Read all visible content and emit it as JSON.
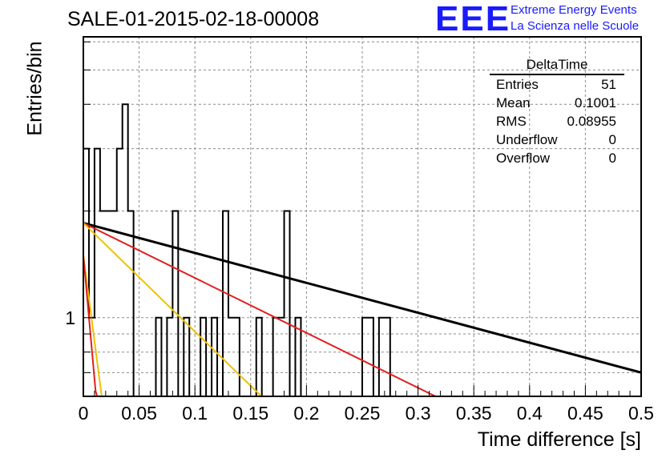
{
  "header": {
    "title": "SALE-01-2015-02-18-00008",
    "logo_text": "EEE",
    "logo_line1": "Extreme Energy Events",
    "logo_line2": "La Scienza nelle Scuole"
  },
  "stats_box": {
    "title": "DeltaTime",
    "rows": [
      {
        "label": "Entries",
        "value": "51"
      },
      {
        "label": "Mean",
        "value": "0.1001"
      },
      {
        "label": "RMS",
        "value": "0.08955"
      },
      {
        "label": "Underflow",
        "value": "0"
      },
      {
        "label": "Overflow",
        "value": "0"
      }
    ]
  },
  "chart_data": {
    "type": "histogram",
    "title": "SALE-01-2015-02-18-00008",
    "xlabel": "Time difference [s]",
    "ylabel": "Entries/bin",
    "xlim": [
      0,
      0.5
    ],
    "ylim": [
      0.6,
      6.2
    ],
    "yscale": "log",
    "grid": true,
    "bin_width": 0.005,
    "x_ticks": [
      "0",
      "0.05",
      "0.1",
      "0.15",
      "0.2",
      "0.25",
      "0.3",
      "0.35",
      "0.4",
      "0.45",
      "0.5"
    ],
    "y_ticks": [
      "1"
    ],
    "bin_counts": [
      3,
      1,
      3,
      2,
      2,
      2,
      3,
      4,
      2,
      0,
      0,
      0,
      0,
      1,
      0,
      1,
      2,
      0,
      1,
      0,
      0,
      1,
      0,
      1,
      0,
      2,
      1,
      1,
      0,
      0,
      0,
      1,
      0,
      0,
      1,
      1,
      2,
      0,
      1,
      0,
      0,
      0,
      0,
      0,
      0,
      0,
      0,
      0,
      0,
      0,
      1,
      1,
      0,
      1,
      1,
      0,
      0,
      0,
      0,
      0,
      0,
      0,
      0,
      0,
      0,
      0,
      0,
      0,
      0,
      0,
      0,
      0,
      0,
      0,
      0,
      0,
      0,
      0,
      0,
      0,
      0,
      0,
      0,
      0,
      0,
      0,
      0,
      0,
      0,
      0,
      0,
      0,
      0,
      0,
      0,
      0,
      0,
      0,
      0,
      0
    ],
    "fit_lines": [
      {
        "color": "#000000",
        "points": [
          [
            0.0,
            1.85
          ],
          [
            0.5,
            0.7
          ]
        ]
      },
      {
        "color": "#e02020",
        "points": [
          [
            0.0,
            1.85
          ],
          [
            0.34,
            0.55
          ]
        ]
      },
      {
        "color": "#f0c000",
        "points": [
          [
            0.0,
            1.85
          ],
          [
            0.172,
            0.55
          ]
        ]
      },
      {
        "color": "#f0c000",
        "points": [
          [
            0.0,
            1.5
          ],
          [
            0.018,
            0.55
          ]
        ]
      },
      {
        "color": "#e02020",
        "points": [
          [
            0.0,
            1.5
          ],
          [
            0.011,
            0.62
          ],
          [
            0.016,
            0.55
          ]
        ]
      }
    ]
  }
}
